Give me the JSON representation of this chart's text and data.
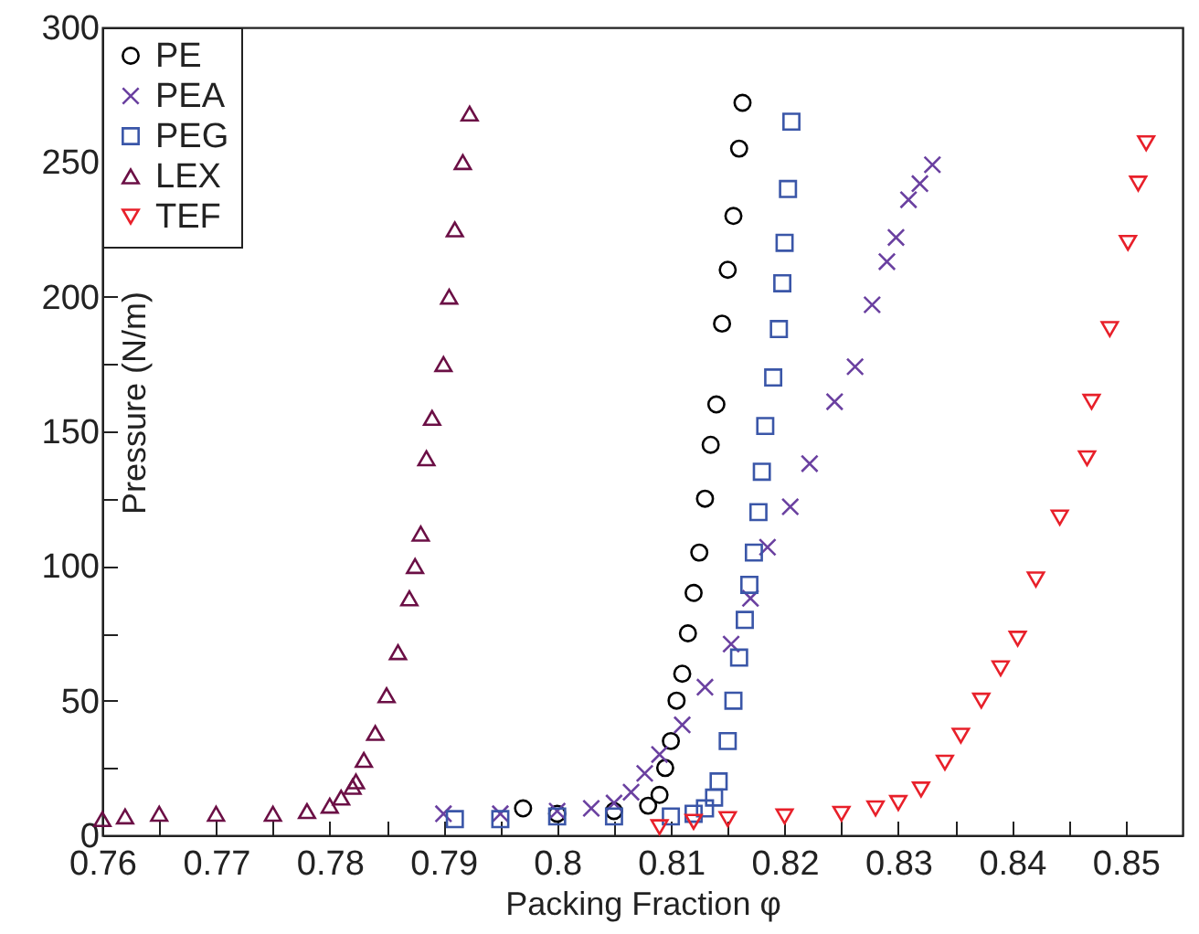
{
  "chart_data": {
    "type": "scatter",
    "xlabel": "Packing Fraction φ",
    "ylabel": "Pressure (N/m)",
    "xlim": [
      0.76,
      0.855
    ],
    "ylim": [
      0,
      300
    ],
    "xticks": [
      {
        "value": 0.76,
        "label": "0.76"
      },
      {
        "value": 0.765,
        "label": null
      },
      {
        "value": 0.77,
        "label": "0.77"
      },
      {
        "value": 0.775,
        "label": null
      },
      {
        "value": 0.78,
        "label": "0.78"
      },
      {
        "value": 0.785,
        "label": null
      },
      {
        "value": 0.79,
        "label": "0.79"
      },
      {
        "value": 0.795,
        "label": null
      },
      {
        "value": 0.8,
        "label": "0.8"
      },
      {
        "value": 0.805,
        "label": null
      },
      {
        "value": 0.81,
        "label": "0.81"
      },
      {
        "value": 0.815,
        "label": null
      },
      {
        "value": 0.82,
        "label": "0.82"
      },
      {
        "value": 0.825,
        "label": null
      },
      {
        "value": 0.83,
        "label": "0.83"
      },
      {
        "value": 0.835,
        "label": null
      },
      {
        "value": 0.84,
        "label": "0.84"
      },
      {
        "value": 0.845,
        "label": null
      },
      {
        "value": 0.85,
        "label": "0.85"
      }
    ],
    "yticks": [
      0,
      {
        "value": 25,
        "label": null
      },
      50,
      {
        "value": 75,
        "label": null
      },
      100,
      {
        "value": 125,
        "label": null
      },
      150,
      {
        "value": 175,
        "label": null
      },
      200,
      {
        "value": 225,
        "label": null
      },
      250,
      {
        "value": 275,
        "label": null
      },
      300
    ],
    "grid": false,
    "legend": "top left",
    "series": [
      {
        "name": "PE",
        "color": "#000000",
        "marker": "circle",
        "x": [
          0.797,
          0.8,
          0.805,
          0.808,
          0.809,
          0.8095,
          0.81,
          0.8105,
          0.811,
          0.8115,
          0.812,
          0.8125,
          0.813,
          0.8135,
          0.814,
          0.8145,
          0.815,
          0.8155,
          0.816,
          0.8163
        ],
        "values": [
          10,
          8,
          9,
          11,
          15,
          25,
          35,
          50,
          60,
          75,
          90,
          105,
          125,
          145,
          160,
          190,
          210,
          230,
          255,
          272
        ]
      },
      {
        "name": "PEA",
        "color": "#6a40a0",
        "marker": "cross",
        "x": [
          0.79,
          0.795,
          0.8,
          0.803,
          0.805,
          0.8065,
          0.8077,
          0.809,
          0.811,
          0.813,
          0.8153,
          0.817,
          0.8185,
          0.8205,
          0.8222,
          0.8244,
          0.8262,
          0.8277,
          0.829,
          0.8298,
          0.8309,
          0.8319,
          0.833
        ],
        "values": [
          8,
          8,
          9,
          10,
          12,
          16,
          23,
          30,
          41,
          55,
          71,
          88,
          107,
          122,
          138,
          161,
          174,
          197,
          213,
          222,
          236,
          242,
          249
        ]
      },
      {
        "name": "PEG",
        "color": "#3a56a8",
        "marker": "square",
        "x": [
          0.791,
          0.795,
          0.8,
          0.805,
          0.81,
          0.812,
          0.813,
          0.8138,
          0.8142,
          0.815,
          0.8155,
          0.816,
          0.8165,
          0.8169,
          0.8173,
          0.8177,
          0.818,
          0.8183,
          0.819,
          0.8195,
          0.8198,
          0.82,
          0.8203,
          0.8206
        ],
        "values": [
          6,
          6,
          7,
          7,
          7,
          8,
          10,
          14,
          20,
          35,
          50,
          66,
          80,
          93,
          105,
          120,
          135,
          152,
          170,
          188,
          205,
          220,
          240,
          265
        ]
      },
      {
        "name": "LEX",
        "color": "#6b0f45",
        "marker": "triangle",
        "x": [
          0.76,
          0.762,
          0.765,
          0.77,
          0.775,
          0.778,
          0.78,
          0.781,
          0.782,
          0.7823,
          0.783,
          0.784,
          0.785,
          0.786,
          0.787,
          0.7875,
          0.788,
          0.7885,
          0.789,
          0.79,
          0.7905,
          0.791,
          0.7917,
          0.7923
        ],
        "values": [
          6,
          7,
          8,
          8,
          8,
          9,
          11,
          14,
          18,
          20,
          28,
          38,
          52,
          68,
          88,
          100,
          112,
          140,
          155,
          175,
          200,
          225,
          250,
          268
        ]
      },
      {
        "name": "TEF",
        "color": "#e8202a",
        "marker": "triangle_down",
        "x": [
          0.809,
          0.812,
          0.815,
          0.82,
          0.825,
          0.828,
          0.83,
          0.832,
          0.8341,
          0.8355,
          0.8373,
          0.839,
          0.8405,
          0.8421,
          0.8442,
          0.8466,
          0.847,
          0.8486,
          0.8502,
          0.8511,
          0.8518
        ],
        "values": [
          3,
          5,
          6,
          7,
          8,
          10,
          12,
          17,
          27,
          37,
          50,
          62,
          73,
          95,
          118,
          140,
          161,
          188,
          220,
          242,
          257
        ]
      }
    ]
  }
}
